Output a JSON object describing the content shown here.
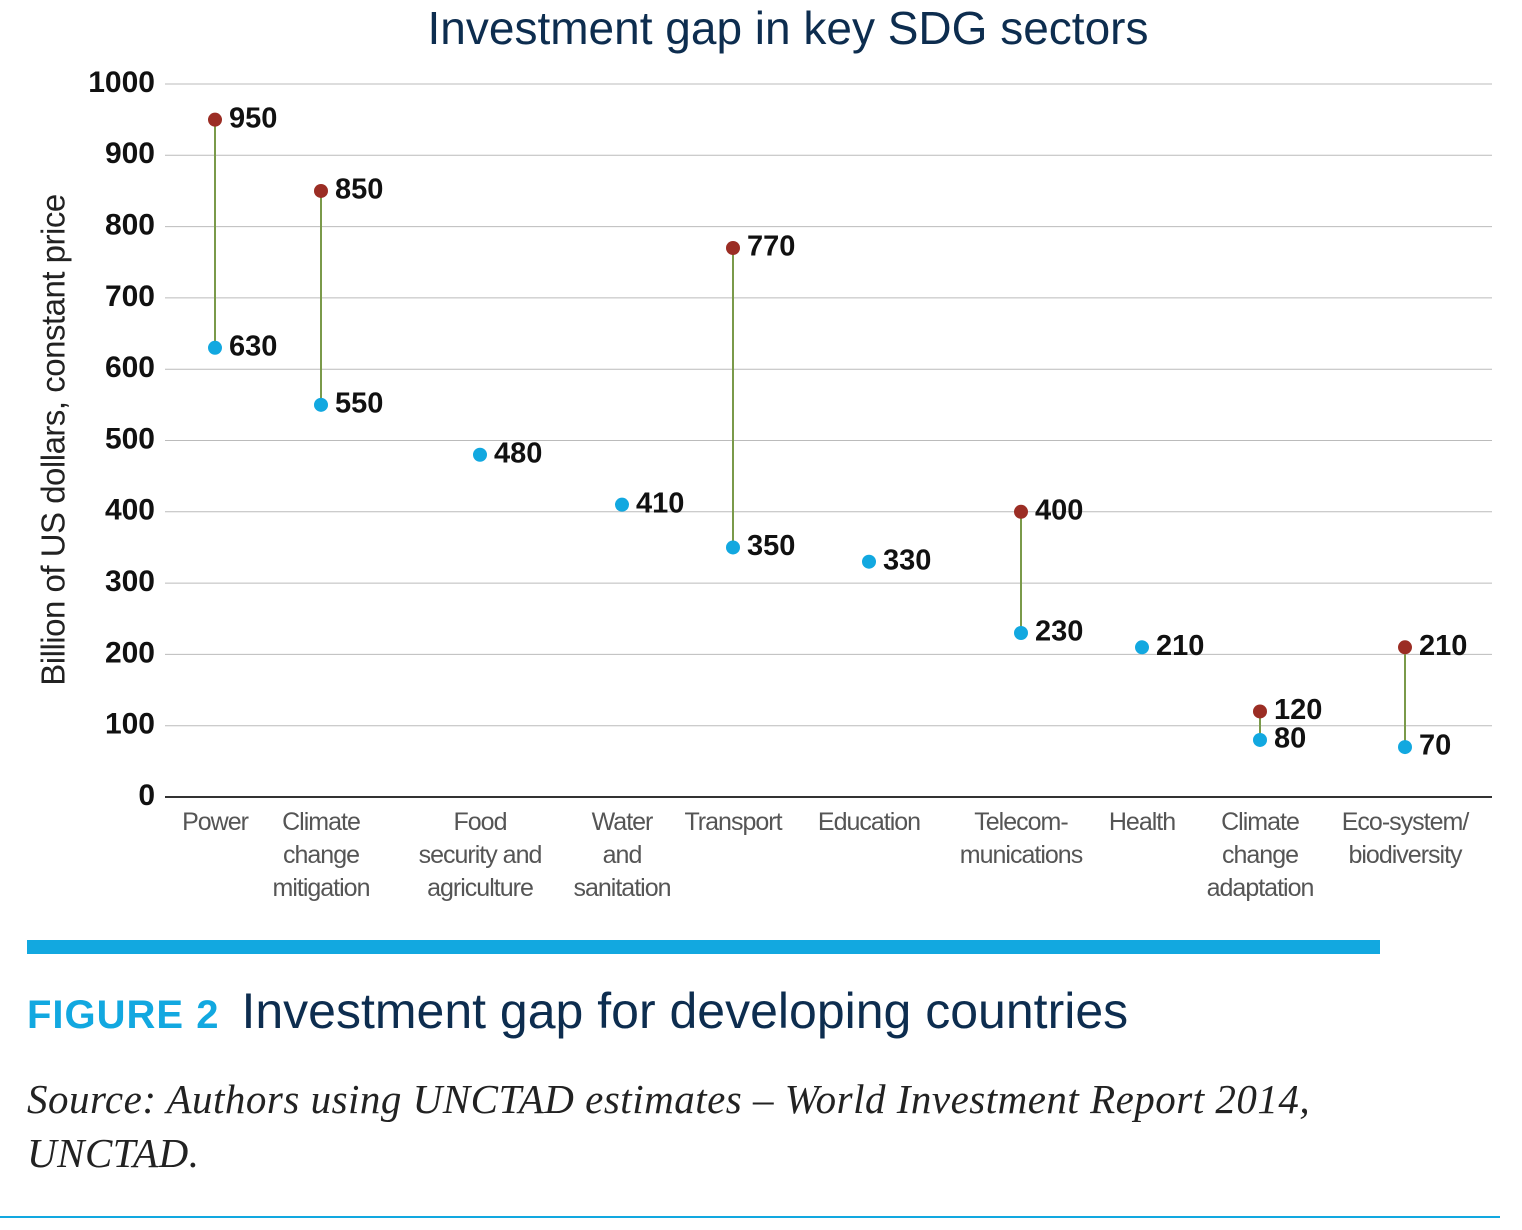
{
  "chart_data": {
    "type": "dumbbell",
    "title": "Investment gap in key SDG sectors",
    "y_label": "Billion of US dollars, constant price",
    "categories": [
      "Power",
      "Climate\nchange\nmitigation",
      "Food\nsecurity and\nagriculture",
      "Water\nand\nsanitation",
      "Transport",
      "Education",
      "Telecom-\nmunications",
      "Health",
      "Climate\nchange\nadaptation",
      "Eco-system/\nbiodiversity"
    ],
    "series": [
      {
        "color": "#12a8e0",
        "values": [
          630,
          550,
          480,
          410,
          350,
          330,
          230,
          210,
          80,
          70
        ]
      },
      {
        "color": "#9b2d24",
        "values": [
          950,
          850,
          null,
          null,
          770,
          null,
          400,
          null,
          120,
          210
        ]
      }
    ],
    "connector_color": "#7a9a4a",
    "ylim": [
      0,
      1000
    ],
    "yticks": [
      0,
      100,
      200,
      300,
      400,
      500,
      600,
      700,
      800,
      900,
      1000
    ],
    "grid": true
  },
  "figure": {
    "label": "FIGURE 2",
    "title": "Investment gap for developing countries"
  },
  "source": "Source: Authors using UNCTAD estimates – World Investment Report 2014, UNCTAD."
}
